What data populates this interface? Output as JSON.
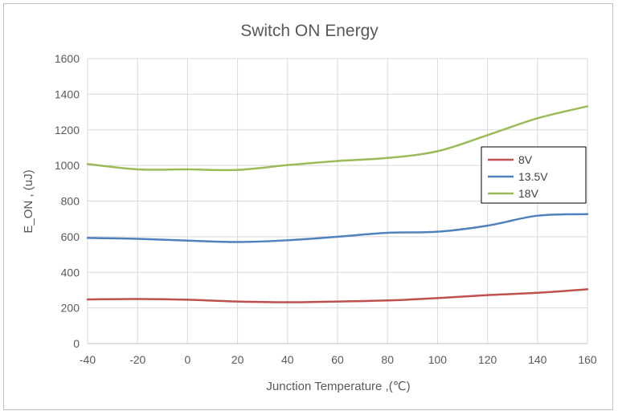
{
  "chart_data": {
    "type": "line",
    "title": "Switch ON Energy",
    "xlabel": "Junction Temperature ,(℃)",
    "ylabel": "E_ON , (uJ)",
    "xlim": [
      -40,
      160
    ],
    "ylim": [
      0,
      1600
    ],
    "xticks": [
      -40,
      -20,
      0,
      20,
      40,
      60,
      80,
      100,
      120,
      140,
      160
    ],
    "yticks": [
      0,
      200,
      400,
      600,
      800,
      1000,
      1200,
      1400,
      1600
    ],
    "grid": true,
    "legend_position": "right",
    "series": [
      {
        "name": "8V",
        "color": "#c0504d",
        "x": [
          -40,
          -20,
          0,
          20,
          40,
          60,
          80,
          100,
          120,
          140,
          160
        ],
        "values": [
          248,
          250,
          246,
          236,
          232,
          236,
          242,
          255,
          272,
          285,
          305
        ]
      },
      {
        "name": "13.5V",
        "color": "#4f81bd",
        "x": [
          -40,
          -20,
          0,
          20,
          40,
          60,
          80,
          100,
          120,
          140,
          160
        ],
        "values": [
          593,
          588,
          578,
          570,
          580,
          600,
          622,
          628,
          662,
          718,
          727
        ]
      },
      {
        "name": "18V",
        "color": "#9bbb59",
        "x": [
          -40,
          -20,
          0,
          20,
          40,
          60,
          80,
          100,
          120,
          140,
          160
        ],
        "values": [
          1008,
          978,
          978,
          975,
          1002,
          1025,
          1042,
          1080,
          1170,
          1265,
          1332
        ]
      }
    ]
  }
}
